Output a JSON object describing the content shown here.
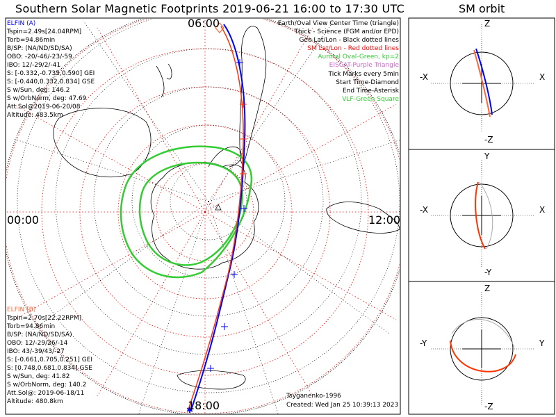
{
  "header": {
    "title": "Southern Solar Magnetic Footprints 2019-06-21 16:00 to 17:30 UTC",
    "orbit_title": "SM orbit"
  },
  "map": {
    "time_labels": {
      "top": "06:00",
      "left": "00:00",
      "right": "12:00",
      "bottom": "18:00"
    }
  },
  "legend": [
    {
      "text": "Earth/Oval View Center Time (triangle)",
      "color": "#000000"
    },
    {
      "text": "Thick - Science (FGM and/or EPD)",
      "color": "#000000"
    },
    {
      "text": "Geo Lat/Lon - Black dotted lines",
      "color": "#000000"
    },
    {
      "text": "SM Lat/Lon - Red dotted lines",
      "color": "#ff0000"
    },
    {
      "text": "Auroral Oval-Green, kp=2",
      "color": "#33cc33"
    },
    {
      "text": "EISCAT-Purple Triangle",
      "color": "#cc66cc"
    },
    {
      "text": "Tick Marks every 5min",
      "color": "#000000"
    },
    {
      "text": "Start Time-Diamond",
      "color": "#000000"
    },
    {
      "text": "End Time-Asterisk",
      "color": "#000000"
    },
    {
      "text": "VLF-Green Square",
      "color": "#33cc33"
    }
  ],
  "elfin_a": {
    "name": "ELFIN (A)",
    "color": "#0000ff",
    "lines": [
      "Tspin=2.49s[24.04RPM]",
      "Torb=94.86min",
      "B/SP: (NA/ND/SD/SA)",
      "OBO: -20/-46/-23/-59",
      "IBO: 12/-29/2/-41",
      "S: [-0.332,-0.735,0.590] GEI",
      "S: [-0.440,0.332,0.834] GSE",
      "S w/Sun, deg: 146.2",
      "S w/OrbNorm, deg: 47.69",
      "Att.Sol@2019-06-20/08",
      "Altitude: 483.5km"
    ]
  },
  "elfin_b": {
    "name": "ELFIN (B)",
    "color": "#ff6633",
    "lines": [
      "Tspin=2.70s[22.22RPM]",
      "Torb=94.86min",
      "B/SP: (NA/ND/SD/SA)",
      "OBO: 12/-29/26/-14",
      "IBO: 43/-39/43/-27",
      "S: [-0.661,0.705,0.251] GEI",
      "S: [0.748,0.681,0.834] GSE",
      "S w/Sun, deg: 41.82",
      "S w/OrbNorm, deg: 140.2",
      "Att.Sol@: 2019-06-18/11",
      "Altitude: 480.8km"
    ]
  },
  "footer": {
    "model": "Tsyganenko-1996",
    "created": "Created: Wed Jan 25 10:39:13 2023"
  },
  "orbit_panels": [
    {
      "top": "Z",
      "bottom": "-Z",
      "left": "-X",
      "right": "X"
    },
    {
      "top": "Y",
      "bottom": "-Y",
      "left": "-X",
      "right": "X"
    },
    {
      "top": "Z",
      "bottom": "-Z",
      "left": "-Y",
      "right": "Y"
    }
  ],
  "colors": {
    "sm_grid": "#ff0000",
    "geo_grid": "#000000",
    "auroral_oval": "#33cc33",
    "elfin_a_track": "#0000ff",
    "elfin_b_track": "#ff3300",
    "orbit_gray": "#aaaaaa"
  }
}
